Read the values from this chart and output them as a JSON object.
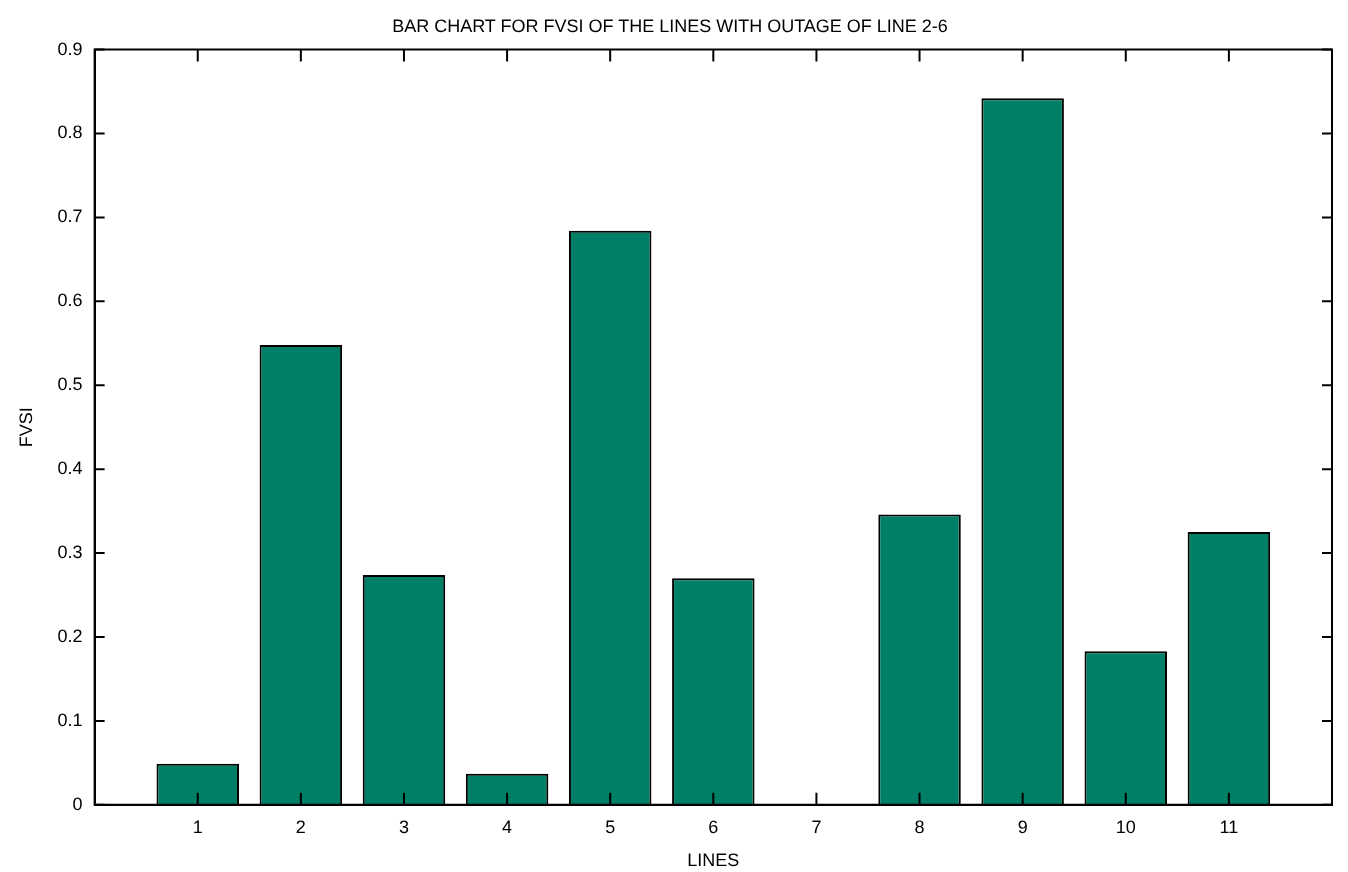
{
  "chart_data": {
    "type": "bar",
    "title": "BAR CHART FOR FVSI OF THE LINES WITH OUTAGE OF LINE 2-6",
    "xlabel": "LINES",
    "ylabel": "FVSI",
    "categories": [
      "1",
      "2",
      "3",
      "4",
      "5",
      "6",
      "7",
      "8",
      "9",
      "10",
      "11"
    ],
    "values": [
      0.049,
      0.548,
      0.274,
      0.037,
      0.684,
      0.27,
      0,
      0.346,
      0.842,
      0.183,
      0.325
    ],
    "color": "#007f67",
    "ylim": [
      0,
      0.9
    ],
    "yticks": [
      0,
      0.1,
      0.2,
      0.3,
      0.4,
      0.5,
      0.6,
      0.7,
      0.8,
      0.9
    ],
    "grid": false,
    "legend": false
  }
}
